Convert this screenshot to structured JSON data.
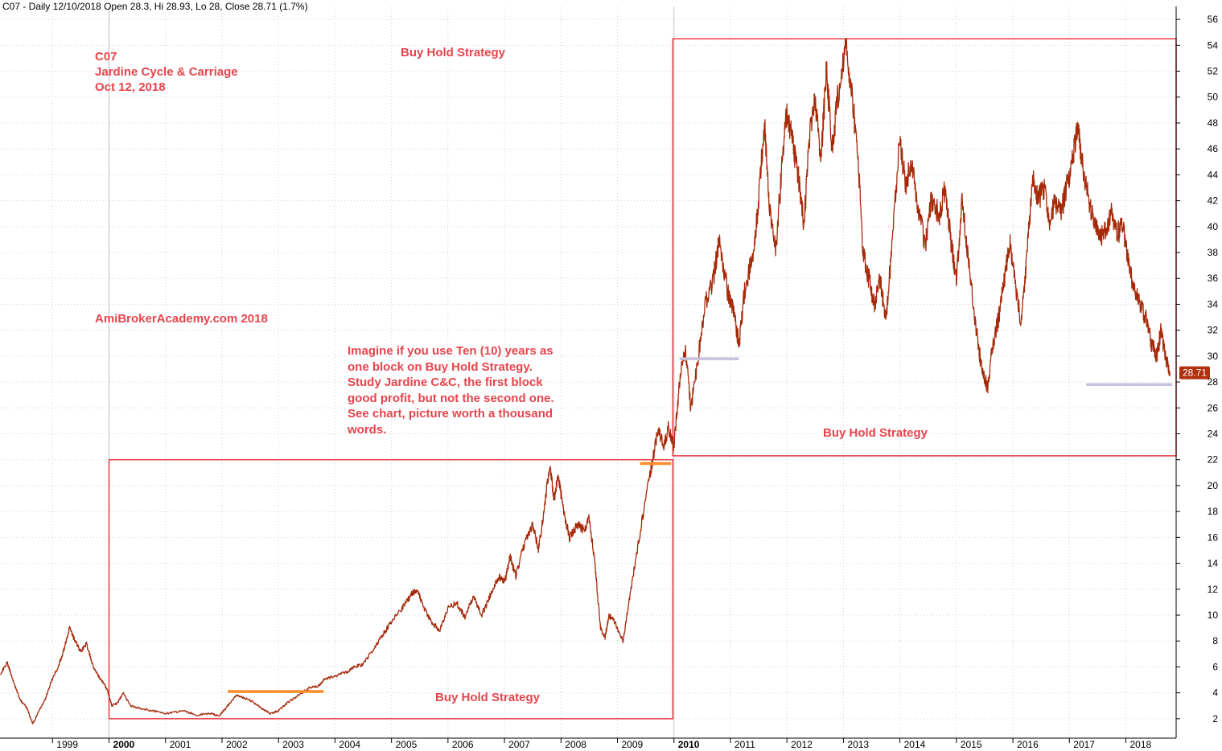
{
  "header": {
    "text": "C07 - Daily 12/10/2018 Open 28.3, Hi 28.93, Lo 28, Close 28.71 (1.7%)"
  },
  "annotations": {
    "ticker": "C07",
    "company": "Jardine Cycle & Carriage",
    "date": "Oct 12, 2018",
    "watermark": "AmiBrokerAcademy.com  2018",
    "box_label_top": "Buy Hold Strategy",
    "box_label_1": "Buy Hold Strategy",
    "box_label_2": "Buy Hold Strategy",
    "note_lines": [
      "Imagine if you use Ten (10) years as",
      "one block on Buy Hold Strategy.",
      "Study Jardine C&C, the first block",
      "good profit, but not the second one.",
      "See chart, picture worth a thousand",
      "words."
    ]
  },
  "colors": {
    "price": "#a52a0a",
    "box": "#e8444c",
    "orange_line": "#ff8c2a",
    "lavender_line": "#c8c0dc",
    "grid": "#d0d0d0",
    "badge": "#b03010"
  },
  "chart_data": {
    "type": "line",
    "title": "",
    "xlabel": "",
    "ylabel": "",
    "y_axis_side": "right",
    "ylim": [
      0.5,
      57
    ],
    "xlim": [
      1998.07,
      2018.89
    ],
    "grid": true,
    "y_ticks": [
      2,
      4,
      6,
      8,
      10,
      12,
      14,
      16,
      18,
      20,
      22,
      24,
      26,
      28,
      30,
      32,
      34,
      36,
      38,
      40,
      42,
      44,
      46,
      48,
      50,
      52,
      54,
      56
    ],
    "x_tick_labels": [
      {
        "label": "1999",
        "year": 1999,
        "bold": false
      },
      {
        "label": "2000",
        "year": 2000,
        "bold": true
      },
      {
        "label": "2001",
        "year": 2001,
        "bold": false
      },
      {
        "label": "2002",
        "year": 2002,
        "bold": false
      },
      {
        "label": "2003",
        "year": 2003,
        "bold": false
      },
      {
        "label": "2004",
        "year": 2004,
        "bold": false
      },
      {
        "label": "2005",
        "year": 2005,
        "bold": false
      },
      {
        "label": "2006",
        "year": 2006,
        "bold": false
      },
      {
        "label": "2007",
        "year": 2007,
        "bold": false
      },
      {
        "label": "2008",
        "year": 2008,
        "bold": false
      },
      {
        "label": "2009",
        "year": 2009,
        "bold": false
      },
      {
        "label": "2010",
        "year": 2010,
        "bold": true
      },
      {
        "label": "2011",
        "year": 2011,
        "bold": false
      },
      {
        "label": "2012",
        "year": 2012,
        "bold": false
      },
      {
        "label": "2013",
        "year": 2013,
        "bold": false
      },
      {
        "label": "2014",
        "year": 2014,
        "bold": false
      },
      {
        "label": "2015",
        "year": 2015,
        "bold": false
      },
      {
        "label": "2016",
        "year": 2016,
        "bold": false
      },
      {
        "label": "2017",
        "year": 2017,
        "bold": false
      },
      {
        "label": "2018",
        "year": 2018,
        "bold": false
      }
    ],
    "series": [
      {
        "points": [
          [
            1998.08,
            5.5
          ],
          [
            1998.2,
            6.3
          ],
          [
            1998.3,
            5.0
          ],
          [
            1998.42,
            3.5
          ],
          [
            1998.55,
            2.8
          ],
          [
            1998.65,
            1.6
          ],
          [
            1998.75,
            2.5
          ],
          [
            1998.87,
            3.5
          ],
          [
            1998.97,
            4.8
          ],
          [
            1999.1,
            6.0
          ],
          [
            1999.2,
            7.3
          ],
          [
            1999.3,
            9.0
          ],
          [
            1999.4,
            8.0
          ],
          [
            1999.5,
            7.2
          ],
          [
            1999.6,
            7.8
          ],
          [
            1999.72,
            6.0
          ],
          [
            1999.82,
            5.2
          ],
          [
            1999.9,
            4.8
          ],
          [
            1999.97,
            4.2
          ],
          [
            2000.05,
            3.0
          ],
          [
            2000.15,
            3.2
          ],
          [
            2000.25,
            4.0
          ],
          [
            2000.38,
            3.0
          ],
          [
            2000.55,
            2.8
          ],
          [
            2000.8,
            2.6
          ],
          [
            2001.0,
            2.4
          ],
          [
            2001.3,
            2.6
          ],
          [
            2001.55,
            2.3
          ],
          [
            2001.8,
            2.4
          ],
          [
            2001.95,
            2.2
          ],
          [
            2002.1,
            3.0
          ],
          [
            2002.25,
            3.8
          ],
          [
            2002.4,
            3.6
          ],
          [
            2002.55,
            3.3
          ],
          [
            2002.7,
            2.8
          ],
          [
            2002.85,
            2.4
          ],
          [
            2003.0,
            2.6
          ],
          [
            2003.15,
            3.2
          ],
          [
            2003.35,
            3.8
          ],
          [
            2003.55,
            4.4
          ],
          [
            2003.7,
            4.5
          ],
          [
            2003.8,
            5.0
          ],
          [
            2004.0,
            5.3
          ],
          [
            2004.2,
            5.6
          ],
          [
            2004.35,
            6.0
          ],
          [
            2004.5,
            6.2
          ],
          [
            2004.7,
            7.5
          ],
          [
            2004.85,
            8.5
          ],
          [
            2005.0,
            9.5
          ],
          [
            2005.2,
            10.6
          ],
          [
            2005.35,
            11.6
          ],
          [
            2005.45,
            12.0
          ],
          [
            2005.55,
            10.8
          ],
          [
            2005.7,
            9.5
          ],
          [
            2005.85,
            8.8
          ],
          [
            2006.0,
            10.5
          ],
          [
            2006.15,
            11.0
          ],
          [
            2006.3,
            9.8
          ],
          [
            2006.45,
            11.5
          ],
          [
            2006.6,
            10.0
          ],
          [
            2006.75,
            11.5
          ],
          [
            2006.9,
            13.0
          ],
          [
            2007.0,
            12.5
          ],
          [
            2007.1,
            14.5
          ],
          [
            2007.2,
            13.0
          ],
          [
            2007.35,
            15.5
          ],
          [
            2007.5,
            17.0
          ],
          [
            2007.6,
            15.0
          ],
          [
            2007.7,
            18.0
          ],
          [
            2007.8,
            21.5
          ],
          [
            2007.88,
            19.0
          ],
          [
            2007.95,
            20.8
          ],
          [
            2008.05,
            18.0
          ],
          [
            2008.15,
            16.0
          ],
          [
            2008.3,
            17.0
          ],
          [
            2008.42,
            16.5
          ],
          [
            2008.5,
            17.5
          ],
          [
            2008.6,
            14.0
          ],
          [
            2008.7,
            9.0
          ],
          [
            2008.78,
            8.3
          ],
          [
            2008.85,
            10.0
          ],
          [
            2008.95,
            9.5
          ],
          [
            2009.1,
            8.0
          ],
          [
            2009.2,
            11.0
          ],
          [
            2009.35,
            15.0
          ],
          [
            2009.5,
            19.0
          ],
          [
            2009.62,
            21.8
          ],
          [
            2009.72,
            24.5
          ],
          [
            2009.82,
            22.8
          ],
          [
            2009.9,
            24.5
          ],
          [
            2010.0,
            23.0
          ],
          [
            2010.1,
            28.0
          ],
          [
            2010.2,
            30.5
          ],
          [
            2010.3,
            26.0
          ],
          [
            2010.4,
            29.0
          ],
          [
            2010.55,
            34.0
          ],
          [
            2010.7,
            36.0
          ],
          [
            2010.8,
            39.0
          ],
          [
            2010.95,
            35.0
          ],
          [
            2011.05,
            33.5
          ],
          [
            2011.15,
            31.0
          ],
          [
            2011.25,
            35.0
          ],
          [
            2011.4,
            38.0
          ],
          [
            2011.5,
            42.0
          ],
          [
            2011.6,
            48.0
          ],
          [
            2011.7,
            41.0
          ],
          [
            2011.8,
            38.0
          ],
          [
            2011.9,
            44.0
          ],
          [
            2012.0,
            49.0
          ],
          [
            2012.1,
            46.5
          ],
          [
            2012.2,
            44.0
          ],
          [
            2012.3,
            40.0
          ],
          [
            2012.4,
            47.0
          ],
          [
            2012.5,
            50.0
          ],
          [
            2012.6,
            45.0
          ],
          [
            2012.7,
            52.0
          ],
          [
            2012.8,
            46.0
          ],
          [
            2012.9,
            50.0
          ],
          [
            2013.05,
            54.0
          ],
          [
            2013.15,
            50.0
          ],
          [
            2013.25,
            46.0
          ],
          [
            2013.35,
            38.0
          ],
          [
            2013.45,
            36.0
          ],
          [
            2013.55,
            34.0
          ],
          [
            2013.65,
            36.0
          ],
          [
            2013.75,
            32.5
          ],
          [
            2013.85,
            38.0
          ],
          [
            2014.0,
            47.0
          ],
          [
            2014.1,
            43.0
          ],
          [
            2014.2,
            45.0
          ],
          [
            2014.3,
            42.0
          ],
          [
            2014.45,
            38.5
          ],
          [
            2014.55,
            42.0
          ],
          [
            2014.7,
            41.0
          ],
          [
            2014.8,
            43.0
          ],
          [
            2014.9,
            39.0
          ],
          [
            2015.0,
            36.0
          ],
          [
            2015.1,
            42.0
          ],
          [
            2015.2,
            38.0
          ],
          [
            2015.35,
            32.0
          ],
          [
            2015.45,
            29.0
          ],
          [
            2015.55,
            27.5
          ],
          [
            2015.65,
            31.0
          ],
          [
            2015.75,
            33.0
          ],
          [
            2015.85,
            36.0
          ],
          [
            2015.95,
            39.0
          ],
          [
            2016.05,
            35.0
          ],
          [
            2016.15,
            32.5
          ],
          [
            2016.25,
            38.0
          ],
          [
            2016.35,
            44.0
          ],
          [
            2016.45,
            42.0
          ],
          [
            2016.55,
            43.0
          ],
          [
            2016.65,
            40.5
          ],
          [
            2016.75,
            42.0
          ],
          [
            2016.85,
            41.0
          ],
          [
            2016.95,
            43.0
          ],
          [
            2017.05,
            45.0
          ],
          [
            2017.15,
            48.0
          ],
          [
            2017.25,
            44.0
          ],
          [
            2017.35,
            42.0
          ],
          [
            2017.45,
            40.0
          ],
          [
            2017.55,
            39.0
          ],
          [
            2017.65,
            40.0
          ],
          [
            2017.75,
            41.0
          ],
          [
            2017.85,
            39.5
          ],
          [
            2017.95,
            40.0
          ],
          [
            2018.05,
            37.0
          ],
          [
            2018.15,
            35.0
          ],
          [
            2018.25,
            34.0
          ],
          [
            2018.35,
            33.0
          ],
          [
            2018.45,
            31.0
          ],
          [
            2018.55,
            30.0
          ],
          [
            2018.62,
            32.0
          ],
          [
            2018.7,
            30.0
          ],
          [
            2018.78,
            28.71
          ]
        ]
      }
    ],
    "last_value": 28.71,
    "boxes": [
      {
        "x0": 2000.0,
        "x1": 2009.98,
        "y0": 2.0,
        "y1": 22.0
      },
      {
        "x0": 2009.98,
        "x1": 2018.89,
        "y0": 22.3,
        "y1": 54.5
      }
    ],
    "hlines": [
      {
        "x0": 2002.1,
        "x1": 2003.8,
        "y": 4.1,
        "color": "orange_line"
      },
      {
        "x0": 2009.4,
        "x1": 2009.95,
        "y": 21.7,
        "color": "orange_line"
      },
      {
        "x0": 2010.1,
        "x1": 2011.15,
        "y": 29.8,
        "color": "lavender_line"
      },
      {
        "x0": 2017.3,
        "x1": 2018.82,
        "y": 27.8,
        "color": "lavender_line"
      }
    ]
  }
}
